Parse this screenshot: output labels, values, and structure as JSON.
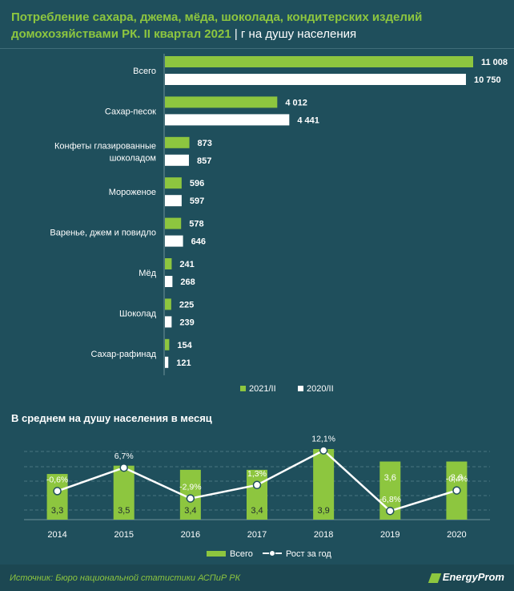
{
  "title": {
    "main": "Потребление сахара, джема, мёда, шоколада, кондитерских изделий домохозяйствами РК. II квартал 2021",
    "unit": "| г на душу населения"
  },
  "colors": {
    "background": "#1f4f5c",
    "green": "#8dc63f",
    "white": "#ffffff"
  },
  "chart_data": [
    {
      "type": "bar",
      "orientation": "horizontal",
      "title": "Потребление сахара, джема, мёда, шоколада, кондитерских изделий домохозяйствами РК. II квартал 2021",
      "unit": "г на душу населения",
      "categories": [
        [
          "Всего"
        ],
        [
          "Сахар-песок"
        ],
        [
          "Конфеты глазированные",
          "шоколадом"
        ],
        [
          "Мороженое"
        ],
        [
          "Варенье, джем и повидло"
        ],
        [
          "Мёд"
        ],
        [
          "Шоколад"
        ],
        [
          "Сахар-рафинад"
        ]
      ],
      "series": [
        {
          "name": "2021/II",
          "color": "#8dc63f",
          "values": [
            11008,
            4012,
            873,
            596,
            578,
            241,
            225,
            154
          ],
          "labels": [
            "11 008",
            "4 012",
            "873",
            "596",
            "578",
            "241",
            "225",
            "154"
          ]
        },
        {
          "name": "2020/II",
          "color": "#ffffff",
          "values": [
            10750,
            4441,
            857,
            597,
            646,
            268,
            239,
            121
          ],
          "labels": [
            "10 750",
            "4 441",
            "857",
            "597",
            "646",
            "268",
            "239",
            "121"
          ]
        }
      ],
      "xlim": [
        0,
        11008
      ],
      "legend": "bottom-right"
    },
    {
      "type": "bar+line",
      "title": "В среднем на душу населения в месяц",
      "categories": [
        "2014",
        "2015",
        "2016",
        "2017",
        "2018",
        "2019",
        "2020"
      ],
      "bars": {
        "name": "Всего",
        "color": "#8dc63f",
        "values": [
          3.3,
          3.5,
          3.4,
          3.4,
          3.9,
          3.6,
          3.6
        ],
        "labels": [
          "3,3",
          "3,5",
          "3,4",
          "3,4",
          "3,9",
          "3,6",
          "3,6"
        ]
      },
      "line": {
        "name": "Рост за год",
        "color": "#ffffff",
        "values": [
          -0.6,
          6.7,
          -2.9,
          1.3,
          12.1,
          -6.8,
          -0.4
        ],
        "labels": [
          "-0,6%",
          "6,7%",
          "-2,9%",
          "1,3%",
          "12,1%",
          "-6,8%",
          "-0,4%"
        ]
      },
      "grid": true,
      "legend": "bottom-center"
    }
  ],
  "footer": {
    "source": "Источник: Бюро национальной статистики АСПиР РК",
    "brand": "EnergyProm"
  }
}
